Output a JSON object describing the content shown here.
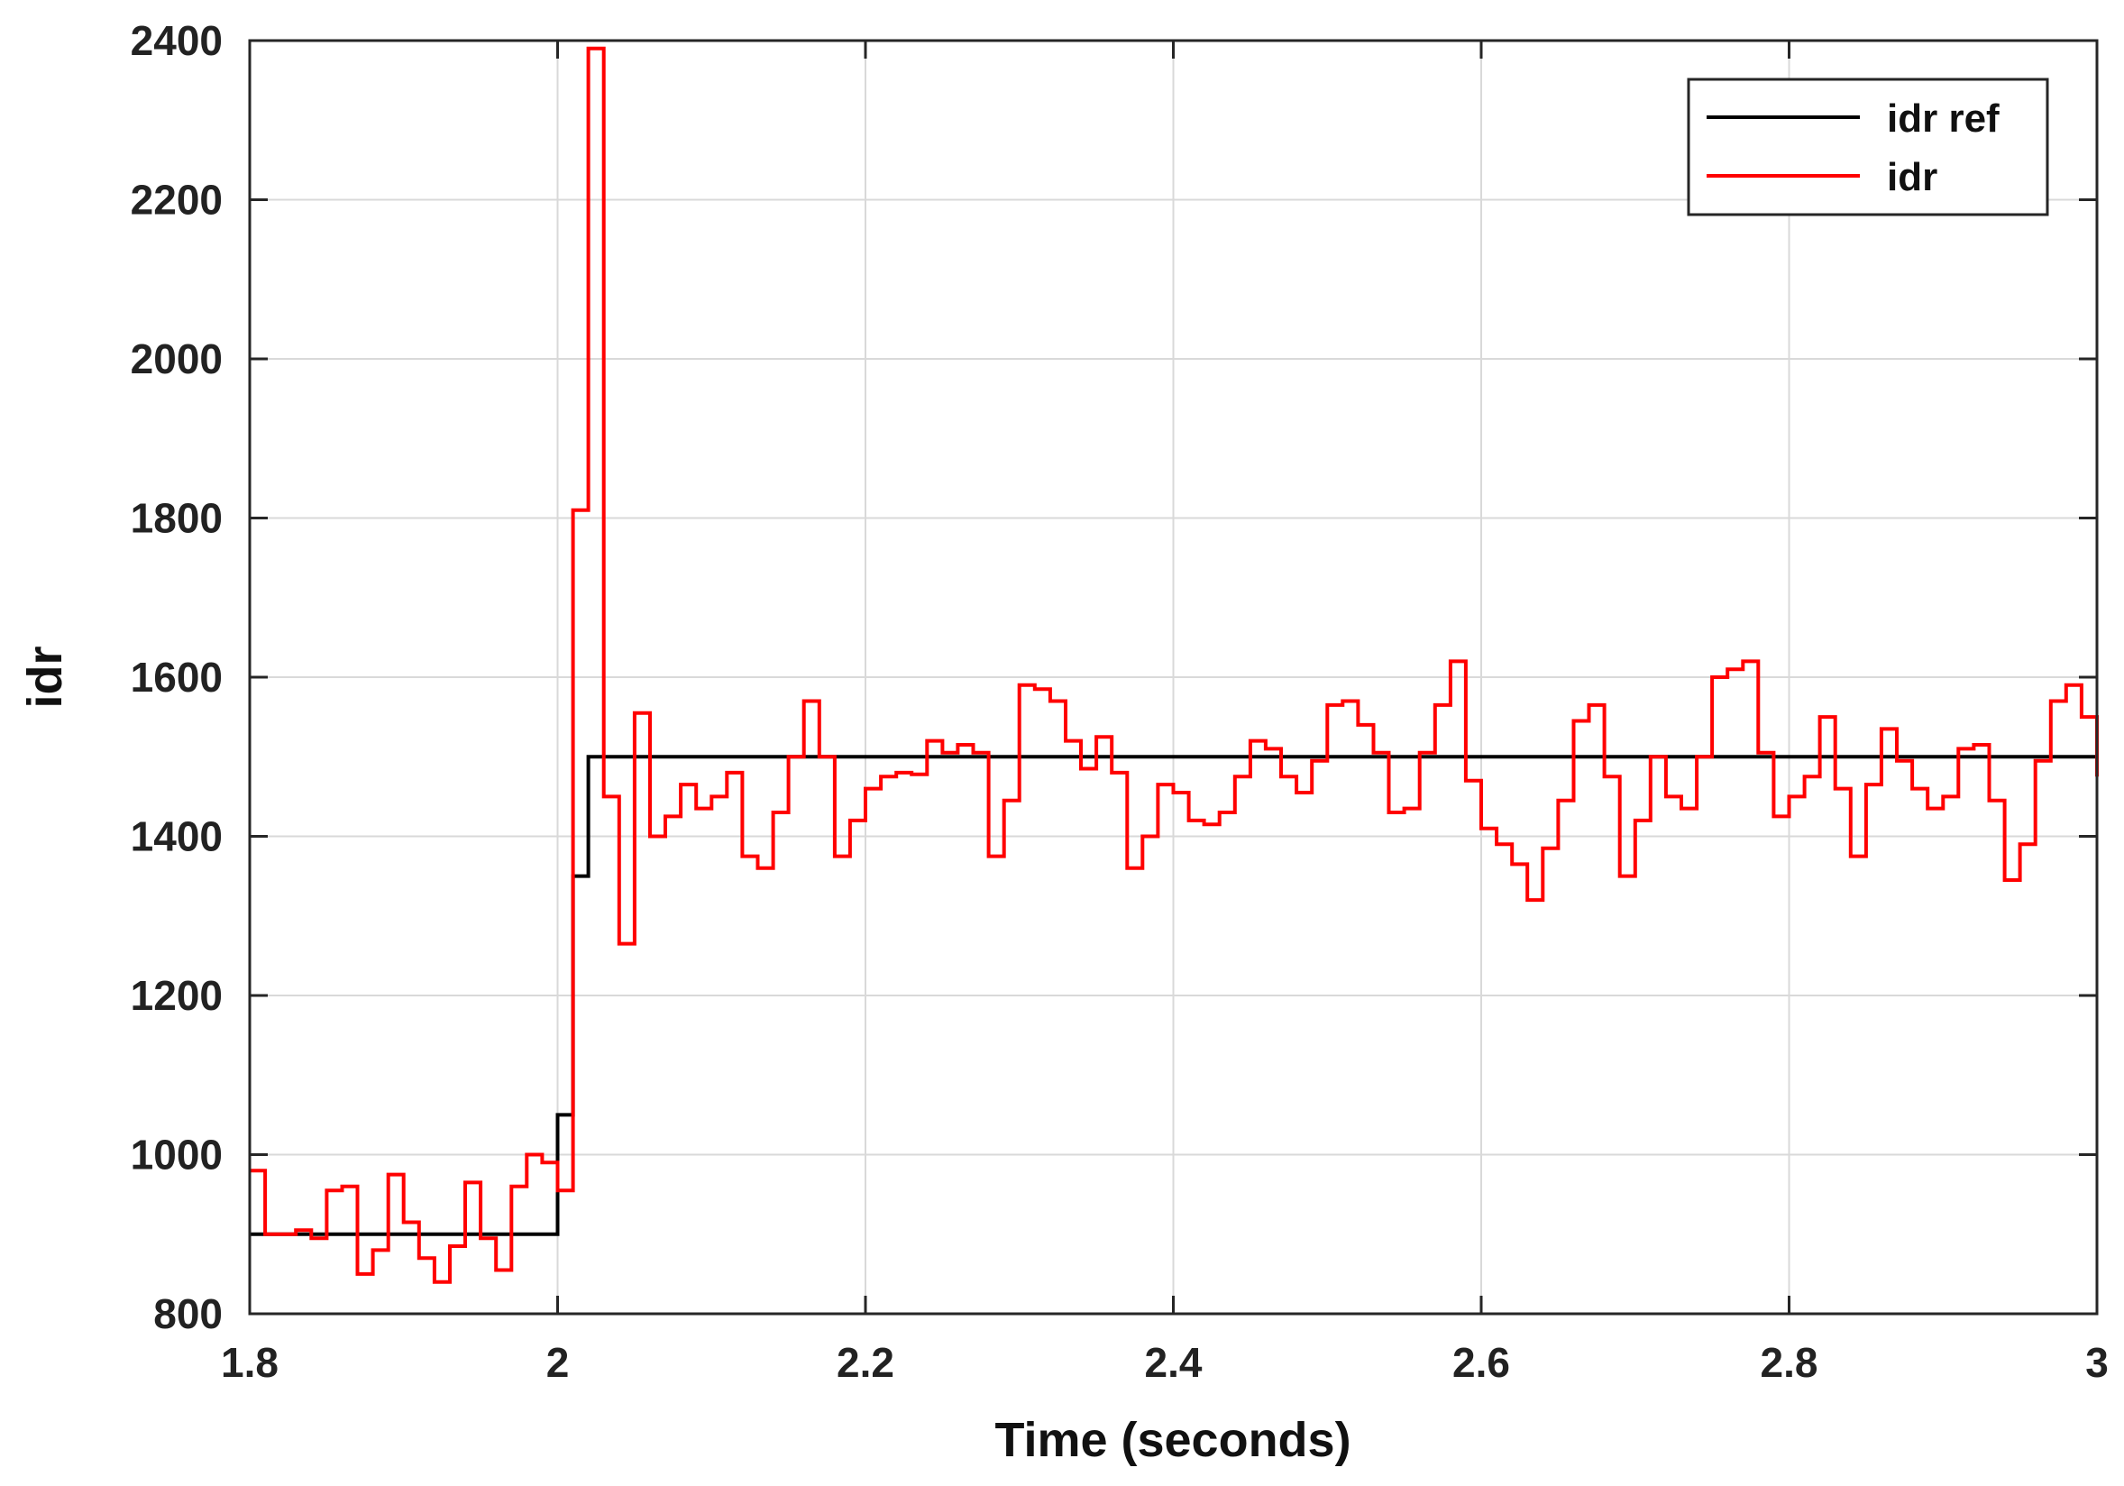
{
  "chart_data": {
    "type": "line",
    "title": "",
    "xlabel": "Time (seconds)",
    "ylabel": "idr",
    "xlim": [
      1.8,
      3.0
    ],
    "ylim": [
      800,
      2400
    ],
    "x_ticks": [
      1.8,
      2.0,
      2.2,
      2.4,
      2.6,
      2.8,
      3.0
    ],
    "x_tick_labels": [
      "1.8",
      "2",
      "2.2",
      "2.4",
      "2.6",
      "2.8",
      "3"
    ],
    "y_ticks": [
      800,
      1000,
      1200,
      1400,
      1600,
      1800,
      2000,
      2200,
      2400
    ],
    "y_tick_labels": [
      "800",
      "1000",
      "1200",
      "1400",
      "1600",
      "1800",
      "2000",
      "2200",
      "2400"
    ],
    "grid": true,
    "legend_position": "top-right",
    "step": true,
    "series": [
      {
        "name": "idr ref",
        "color": "#000000",
        "x": [
          1.8,
          2.0,
          2.01,
          2.02,
          3.0
        ],
        "y": [
          900,
          1050,
          1350,
          1500,
          1500
        ]
      },
      {
        "name": "idr",
        "color": "#ff0000",
        "x": [
          1.8,
          1.81,
          1.82,
          1.83,
          1.84,
          1.85,
          1.86,
          1.87,
          1.88,
          1.89,
          1.9,
          1.91,
          1.92,
          1.93,
          1.94,
          1.95,
          1.96,
          1.97,
          1.98,
          1.99,
          2.0,
          2.01,
          2.02,
          2.03,
          2.04,
          2.05,
          2.06,
          2.07,
          2.08,
          2.09,
          2.1,
          2.11,
          2.12,
          2.13,
          2.14,
          2.15,
          2.16,
          2.17,
          2.18,
          2.19,
          2.2,
          2.21,
          2.22,
          2.23,
          2.24,
          2.25,
          2.26,
          2.27,
          2.28,
          2.29,
          2.3,
          2.31,
          2.32,
          2.33,
          2.34,
          2.35,
          2.36,
          2.37,
          2.38,
          2.39,
          2.4,
          2.41,
          2.42,
          2.43,
          2.44,
          2.45,
          2.46,
          2.47,
          2.48,
          2.49,
          2.5,
          2.51,
          2.52,
          2.53,
          2.54,
          2.55,
          2.56,
          2.57,
          2.58,
          2.59,
          2.6,
          2.61,
          2.62,
          2.63,
          2.64,
          2.65,
          2.66,
          2.67,
          2.68,
          2.69,
          2.7,
          2.71,
          2.72,
          2.73,
          2.74,
          2.75,
          2.76,
          2.77,
          2.78,
          2.79,
          2.8,
          2.81,
          2.82,
          2.83,
          2.84,
          2.85,
          2.86,
          2.87,
          2.88,
          2.89,
          2.9,
          2.91,
          2.92,
          2.93,
          2.94,
          2.95,
          2.96,
          2.97,
          2.98,
          2.99,
          3.0
        ],
        "y": [
          980,
          900,
          900,
          905,
          895,
          955,
          960,
          850,
          880,
          975,
          915,
          870,
          840,
          885,
          965,
          895,
          855,
          960,
          1000,
          990,
          955,
          1810,
          2390,
          1450,
          1265,
          1555,
          1400,
          1425,
          1465,
          1435,
          1450,
          1480,
          1375,
          1360,
          1430,
          1500,
          1570,
          1500,
          1375,
          1420,
          1460,
          1475,
          1480,
          1478,
          1520,
          1505,
          1515,
          1505,
          1375,
          1445,
          1590,
          1585,
          1570,
          1520,
          1485,
          1525,
          1480,
          1360,
          1400,
          1465,
          1455,
          1420,
          1415,
          1430,
          1475,
          1520,
          1510,
          1475,
          1455,
          1495,
          1565,
          1570,
          1540,
          1505,
          1430,
          1435,
          1505,
          1565,
          1620,
          1470,
          1410,
          1390,
          1365,
          1320,
          1385,
          1445,
          1545,
          1565,
          1475,
          1350,
          1420,
          1500,
          1450,
          1435,
          1500,
          1600,
          1610,
          1620,
          1505,
          1425,
          1450,
          1475,
          1550,
          1460,
          1375,
          1465,
          1535,
          1495,
          1460,
          1435,
          1450,
          1510,
          1515,
          1445,
          1345,
          1390,
          1495,
          1570,
          1590,
          1550,
          1475
        ]
      }
    ]
  }
}
